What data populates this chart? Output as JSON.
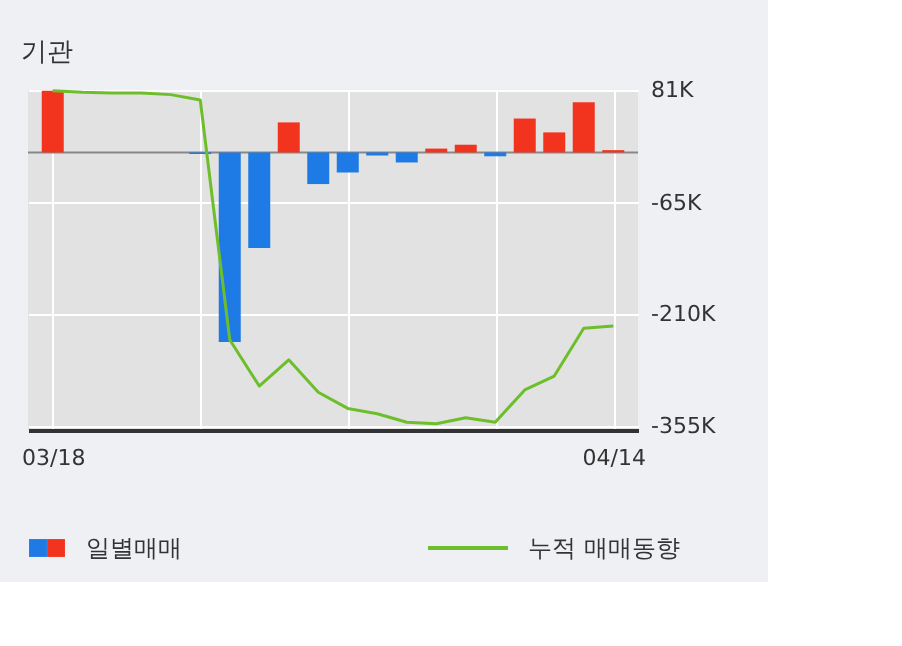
{
  "chart_data": {
    "type": "bar",
    "title": "기관",
    "categories": [
      "03/18",
      null,
      null,
      null,
      null,
      null,
      null,
      null,
      null,
      null,
      null,
      null,
      null,
      null,
      null,
      null,
      null,
      null,
      null,
      "04/14"
    ],
    "series": [
      {
        "name": "일별매매",
        "colors": [
          "#f2341f",
          "#1e7be6",
          "#1e7be6",
          "#1e7be6",
          "#1e7be6",
          "#1e7be6",
          "#1e7be6",
          "#1e7be6",
          "#f2341f",
          "#1e7be6",
          "#1e7be6",
          "#1e7be6",
          "#1e7be6",
          "#f2341f",
          "#f2341f",
          "#1e7be6",
          "#f2341f",
          "#f2341f",
          "#f2341f",
          "#f2341f"
        ],
        "values": [
          80,
          0,
          0,
          0,
          0,
          -2,
          -246,
          -124,
          39,
          -41,
          -26,
          -4,
          -13,
          5,
          10,
          -5,
          44,
          26,
          65,
          3
        ]
      },
      {
        "name": "누적 매매동향",
        "type": "line",
        "color": "#6cbf2b",
        "values": [
          80,
          78,
          77,
          77,
          75,
          68,
          -243,
          -303,
          -269,
          -311,
          -332,
          -339,
          -350,
          -352,
          -344,
          -350,
          -308,
          -290,
          -228,
          -225
        ]
      }
    ],
    "ylim": [
      -360,
      81
    ],
    "yticks": [
      {
        "value": 81,
        "label": "81K"
      },
      {
        "value": -65,
        "label": "-65K"
      },
      {
        "value": -210,
        "label": "-210K"
      },
      {
        "value": -355,
        "label": "-355K"
      }
    ],
    "ref_lines": [
      {
        "axis": "y",
        "value": 0,
        "color": "#888888"
      }
    ],
    "grid": true,
    "legend": "bottom"
  }
}
